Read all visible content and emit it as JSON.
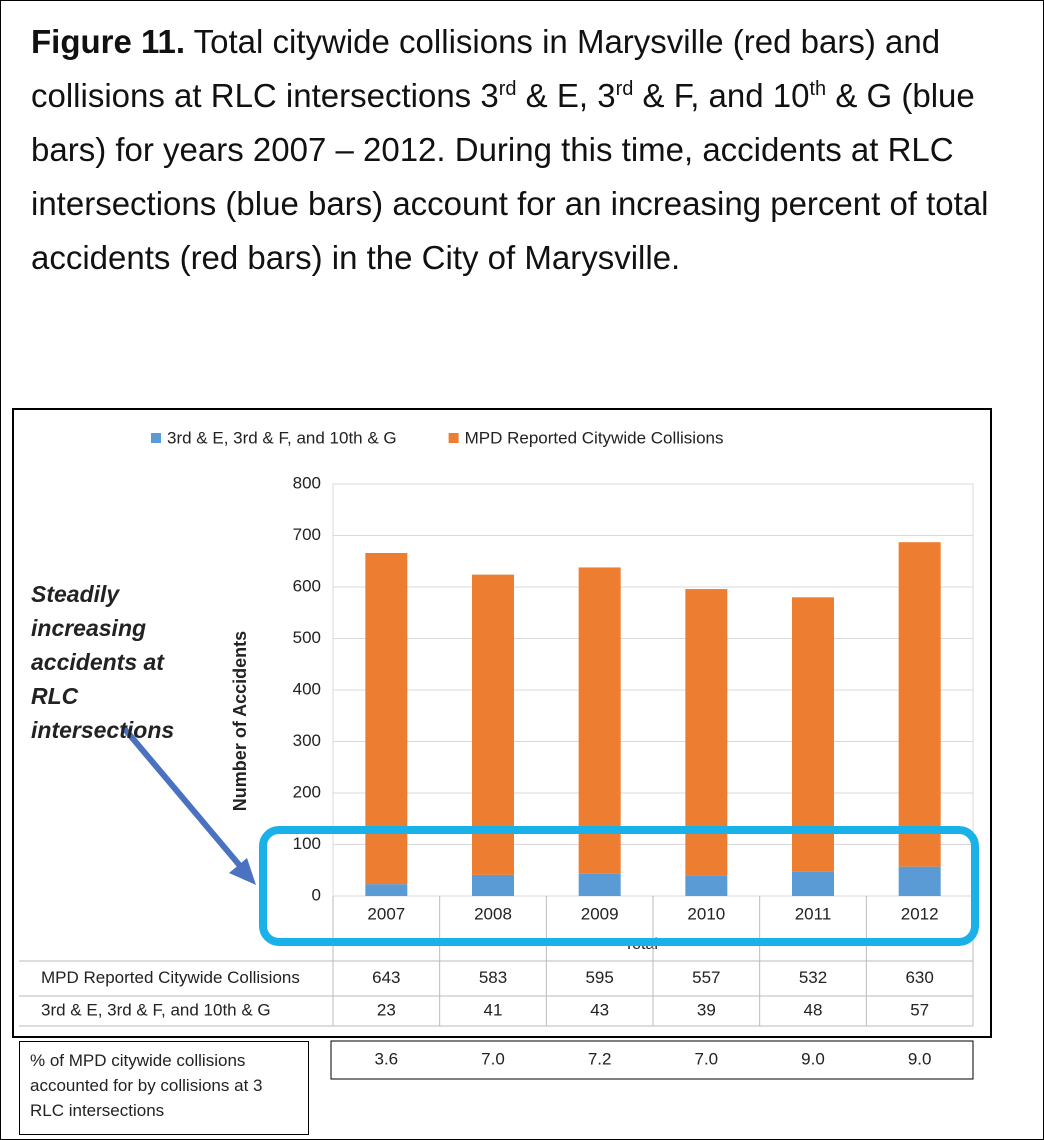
{
  "caption": [
    "Figure 11.",
    " Total citywide collisions in Marysville (red bars) and collisions at RLC intersections 3",
    "rd",
    " & E, 3",
    "rd",
    " & F, and 10",
    "th",
    " & G (blue bars) for years 2007 – 2012. During this time, accidents at RLC intersections (blue bars) account for an increasing percent of total accidents (red bars) in the City of Marysville."
  ],
  "annotation": "Steadily increasing accidents at RLC intersections",
  "chart_data": {
    "type": "stacked_bar",
    "categories": [
      "2007",
      "2008",
      "2009",
      "2010",
      "2011",
      "2012"
    ],
    "series": [
      {
        "name": "3rd & E, 3rd & F, and 10th & G",
        "color": "#5b9bd5",
        "values": [
          23,
          41,
          43,
          39,
          48,
          57
        ]
      },
      {
        "name": "MPD Reported Citywide Collisions",
        "color": "#ed7d31",
        "values": [
          643,
          583,
          595,
          557,
          532,
          630
        ]
      }
    ],
    "ylabel": "Number of Accidents",
    "xlabel": "Total",
    "ylim": [
      0,
      800
    ],
    "yticks": [
      0,
      100,
      200,
      300,
      400,
      500,
      600,
      700,
      800
    ],
    "grid": true,
    "legend": "top",
    "percent_row": {
      "label": "% of MPD citywide collisions accounted for by collisions at 3 RLC intersections",
      "values": [
        3.6,
        7.0,
        7.2,
        7.0,
        9.0,
        9.0
      ],
      "value_labels": [
        "3.6",
        "7.0",
        "7.2",
        "7.0",
        "9.0",
        "9.0"
      ]
    }
  }
}
